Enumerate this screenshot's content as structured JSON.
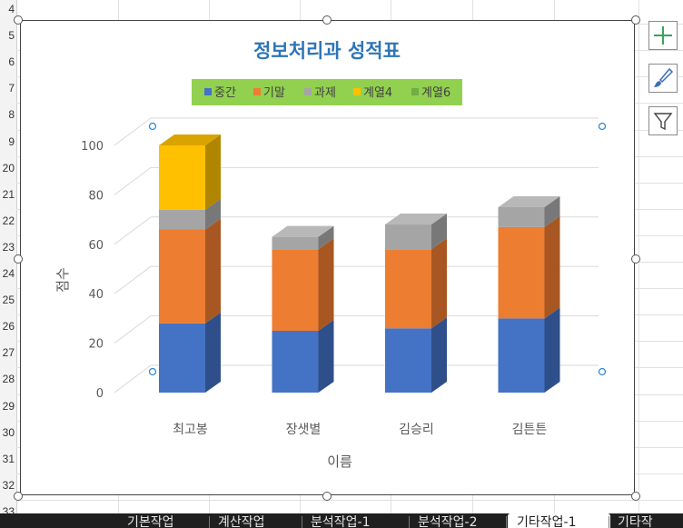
{
  "spreadsheet": {
    "row_numbers": [
      "4",
      "5",
      "6",
      "7",
      "8",
      "9",
      "20",
      "21",
      "22",
      "23",
      "24",
      "25",
      "26",
      "27",
      "28",
      "29",
      "30",
      "31",
      "32",
      "33"
    ],
    "sheet_tabs": [
      {
        "label": "기본작업",
        "active": false
      },
      {
        "label": "계산작업",
        "active": false
      },
      {
        "label": "분석작업-1",
        "active": false
      },
      {
        "label": "분석작업-2",
        "active": false
      },
      {
        "label": "기타작업-1",
        "active": true
      },
      {
        "label": "기타작",
        "active": false
      }
    ]
  },
  "chart_tools": [
    {
      "name": "chart-elements-button",
      "icon": "plus-icon"
    },
    {
      "name": "chart-styles-button",
      "icon": "brush-icon"
    },
    {
      "name": "chart-filters-button",
      "icon": "funnel-icon"
    }
  ],
  "colors": {
    "title": "#2e75b6",
    "legend_bg": "#92d050",
    "series": [
      "#4472c4",
      "#ed7d31",
      "#a5a5a5",
      "#ffc000",
      "#70ad47"
    ],
    "side": [
      "#2f4f8a",
      "#a85722",
      "#787878",
      "#b08600",
      "#4e7a32"
    ],
    "top": [
      "#5a85d1",
      "#f08e4a",
      "#b8b8b8",
      "#d9a400",
      "#86bf5d"
    ]
  },
  "chart_data": {
    "type": "bar",
    "stacked": true,
    "three_d": true,
    "title": "정보처리과 성적표",
    "xlabel": "이름",
    "ylabel": "점수",
    "categories": [
      "최고봉",
      "장샛별",
      "김승리",
      "김튼튼"
    ],
    "ylim": [
      0,
      100
    ],
    "yticks": [
      0,
      20,
      40,
      60,
      80,
      100
    ],
    "grid": true,
    "legend_position": "top",
    "series": [
      {
        "name": "중간",
        "values": [
          28,
          25,
          26,
          30
        ]
      },
      {
        "name": "기말",
        "values": [
          38,
          33,
          32,
          37
        ]
      },
      {
        "name": "과제",
        "values": [
          8,
          5,
          10,
          8
        ]
      },
      {
        "name": "계열4",
        "values": [
          26,
          0,
          0,
          0
        ]
      },
      {
        "name": "계열6",
        "values": [
          0,
          0,
          0,
          0
        ]
      }
    ]
  }
}
